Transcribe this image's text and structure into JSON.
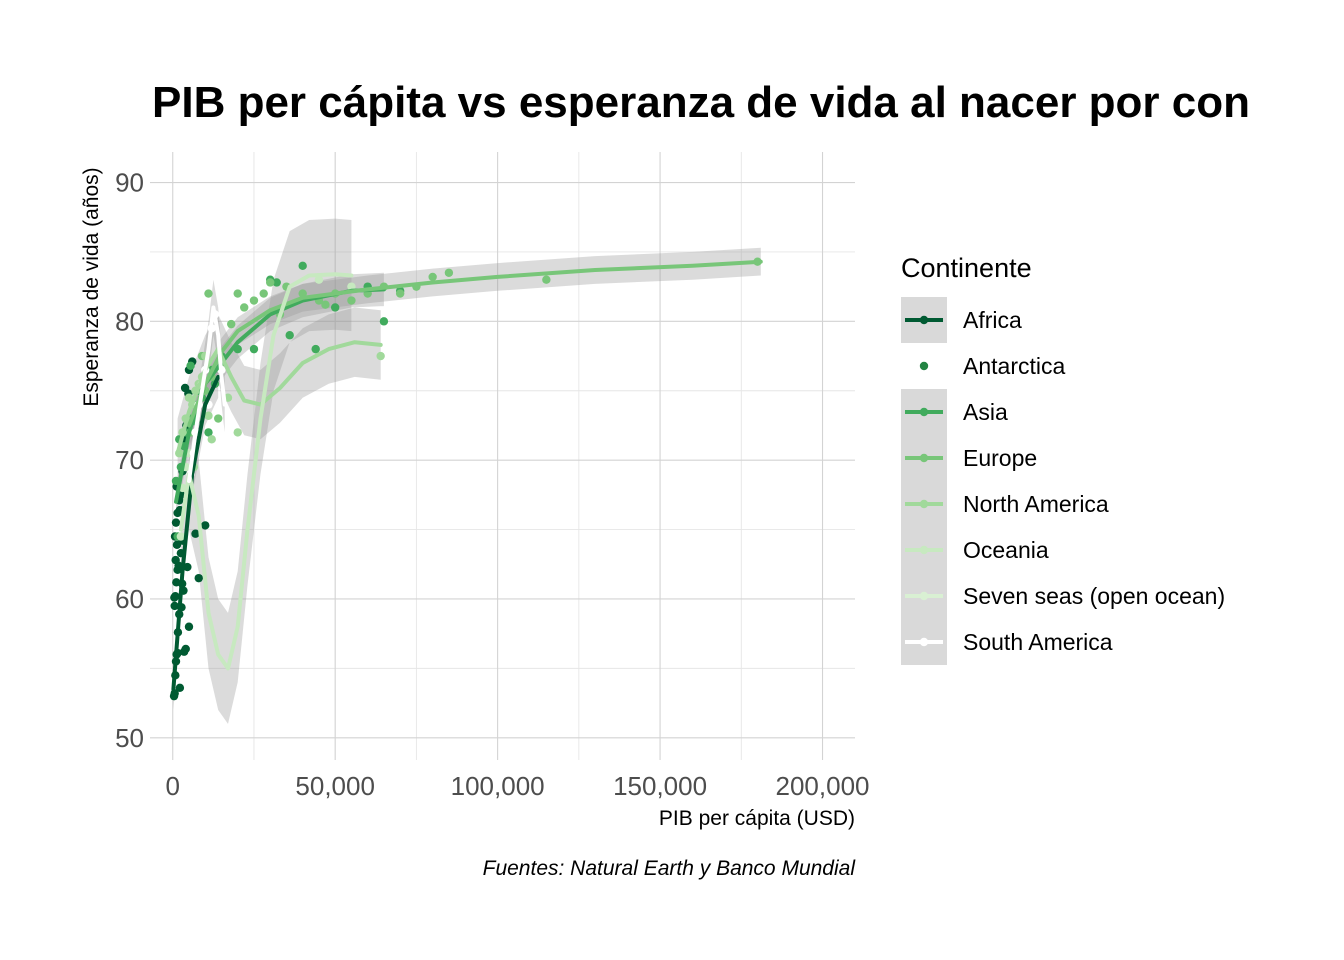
{
  "chart_data": {
    "type": "scatter",
    "title": "PIB per cápita vs esperanza de vida al nacer por con",
    "xlabel": "PIB per cápita  (USD)",
    "ylabel": "Esperanza de vida (años)",
    "caption": "Fuentes: Natural Earth y Banco Mundial",
    "xlim": [
      -7000,
      210000
    ],
    "ylim": [
      48.4,
      92.2
    ],
    "x_ticks": [
      0,
      50000,
      100000,
      150000,
      200000
    ],
    "x_tick_labels": [
      "0",
      "50,000",
      "100,000",
      "150,000",
      "200,000"
    ],
    "y_ticks": [
      50,
      60,
      70,
      80,
      90
    ],
    "y_tick_labels": [
      "50",
      "60",
      "70",
      "80",
      "90"
    ],
    "grid": true,
    "legend": {
      "title": "Continente",
      "placement": "right",
      "entries": [
        "Africa",
        "Antarctica",
        "Asia",
        "Europe",
        "North America",
        "Oceania",
        "Seven seas (open ocean)",
        "South America"
      ]
    },
    "series": [
      {
        "name": "Africa",
        "color": "#005a32",
        "points": [
          [
            400,
            53
          ],
          [
            600,
            53.2
          ],
          [
            800,
            54.5
          ],
          [
            1000,
            55.5
          ],
          [
            1200,
            56
          ],
          [
            1500,
            56.1
          ],
          [
            2200,
            53.6
          ],
          [
            3500,
            56.2
          ],
          [
            4000,
            56.4
          ],
          [
            5000,
            58
          ],
          [
            600,
            59.5
          ],
          [
            800,
            60.2
          ],
          [
            1100,
            61.2
          ],
          [
            1500,
            62.1
          ],
          [
            1800,
            62.4
          ],
          [
            2500,
            63.3
          ],
          [
            3000,
            64.2
          ],
          [
            700,
            64.5
          ],
          [
            1000,
            65.5
          ],
          [
            1500,
            66.2
          ],
          [
            2000,
            67.1
          ],
          [
            2500,
            67.5
          ],
          [
            3000,
            69.2
          ],
          [
            3500,
            71.5
          ],
          [
            4200,
            72.5
          ],
          [
            4800,
            74.8
          ],
          [
            3800,
            75.2
          ],
          [
            5000,
            76.5
          ],
          [
            6000,
            77.1
          ],
          [
            500,
            60.1
          ],
          [
            900,
            62.8
          ],
          [
            1300,
            63.9
          ],
          [
            2000,
            58.9
          ],
          [
            2700,
            59.4
          ],
          [
            1600,
            57.6
          ],
          [
            3300,
            60.6
          ],
          [
            4500,
            62.3
          ],
          [
            8000,
            61.5
          ],
          [
            7000,
            64.7
          ],
          [
            10000,
            65.3
          ],
          [
            1200,
            68.1
          ],
          [
            2200,
            66.4
          ],
          [
            2900,
            61.1
          ]
        ],
        "fit": [
          [
            200,
            53.5
          ],
          [
            3000,
            62
          ],
          [
            6000,
            69
          ],
          [
            10000,
            74
          ],
          [
            14000,
            76
          ]
        ],
        "band": 1.5
      },
      {
        "name": "Antarctica",
        "color": "#238443",
        "points": []
      },
      {
        "name": "Asia",
        "color": "#41ab5d",
        "points": [
          [
            1500,
            64.5
          ],
          [
            2500,
            69.5
          ],
          [
            3500,
            71
          ],
          [
            4000,
            72
          ],
          [
            5000,
            73
          ],
          [
            6500,
            74
          ],
          [
            8000,
            75
          ],
          [
            9000,
            74.5
          ],
          [
            12000,
            76.5
          ],
          [
            15000,
            77.5
          ],
          [
            20000,
            78
          ],
          [
            30000,
            83
          ],
          [
            40000,
            84
          ],
          [
            60000,
            82.5
          ],
          [
            65000,
            80
          ],
          [
            70000,
            82.2
          ],
          [
            50000,
            81
          ],
          [
            5500,
            76.8
          ],
          [
            7000,
            72.8
          ],
          [
            11000,
            72
          ],
          [
            13000,
            75.5
          ],
          [
            25000,
            78
          ],
          [
            32000,
            82.8
          ],
          [
            36000,
            79
          ],
          [
            44000,
            78
          ],
          [
            1000,
            68.5
          ],
          [
            2000,
            71.5
          ]
        ],
        "fit": [
          [
            1000,
            67
          ],
          [
            5000,
            72
          ],
          [
            10000,
            75.5
          ],
          [
            20000,
            78.5
          ],
          [
            30000,
            80.5
          ],
          [
            40000,
            81.5
          ],
          [
            55000,
            82.2
          ],
          [
            65000,
            82.3
          ]
        ],
        "band": 1.2
      },
      {
        "name": "Europe",
        "color": "#78c679",
        "points": [
          [
            5500,
            72
          ],
          [
            8000,
            74
          ],
          [
            10000,
            75
          ],
          [
            12000,
            76
          ],
          [
            15000,
            77
          ],
          [
            18000,
            79.8
          ],
          [
            20000,
            82
          ],
          [
            25000,
            81.5
          ],
          [
            28000,
            82
          ],
          [
            30000,
            82.8
          ],
          [
            35000,
            82.5
          ],
          [
            40000,
            82
          ],
          [
            45000,
            81.5
          ],
          [
            50000,
            82
          ],
          [
            55000,
            81.5
          ],
          [
            60000,
            82
          ],
          [
            65000,
            82.5
          ],
          [
            70000,
            82
          ],
          [
            75000,
            82.5
          ],
          [
            80000,
            83.2
          ],
          [
            85000,
            83.5
          ],
          [
            115000,
            83
          ],
          [
            180000,
            84.3
          ],
          [
            11000,
            82
          ],
          [
            9000,
            77.5
          ],
          [
            14000,
            73
          ],
          [
            22000,
            81
          ],
          [
            33000,
            80.5
          ],
          [
            47000,
            81.2
          ]
        ],
        "fit": [
          [
            5000,
            72.5
          ],
          [
            10000,
            75.5
          ],
          [
            15000,
            77.8
          ],
          [
            20000,
            79.3
          ],
          [
            30000,
            80.8
          ],
          [
            40000,
            81.7
          ],
          [
            60000,
            82.3
          ],
          [
            80000,
            82.8
          ],
          [
            100000,
            83.2
          ],
          [
            130000,
            83.7
          ],
          [
            160000,
            84
          ],
          [
            181000,
            84.3
          ]
        ],
        "band": 1.0
      },
      {
        "name": "North America",
        "color": "#a1d99b",
        "points": [
          [
            2000,
            70.5
          ],
          [
            3000,
            72
          ],
          [
            4000,
            73
          ],
          [
            5000,
            74.5
          ],
          [
            6000,
            74
          ],
          [
            7000,
            75
          ],
          [
            8000,
            75.5
          ],
          [
            9000,
            76
          ],
          [
            10000,
            77.5
          ],
          [
            12000,
            71.5
          ],
          [
            17000,
            74.5
          ],
          [
            20000,
            72
          ],
          [
            64000,
            77.5
          ],
          [
            6500,
            69.5
          ],
          [
            11000,
            73.2
          ]
        ],
        "fit": [
          [
            1500,
            70.5
          ],
          [
            5000,
            73.5
          ],
          [
            10000,
            76.5
          ],
          [
            14000,
            78
          ],
          [
            18000,
            76
          ],
          [
            22000,
            74.3
          ],
          [
            27000,
            74
          ],
          [
            33000,
            75.2
          ],
          [
            40000,
            77
          ],
          [
            48000,
            78
          ],
          [
            56000,
            78.5
          ],
          [
            64000,
            78.3
          ]
        ],
        "band": 2.5
      },
      {
        "name": "Oceania",
        "color": "#c7e9c0",
        "points": [
          [
            2500,
            64.5
          ],
          [
            3000,
            68
          ],
          [
            4000,
            69.5
          ],
          [
            5000,
            70.5
          ],
          [
            45000,
            83
          ],
          [
            55000,
            82.5
          ]
        ],
        "fit": [
          [
            2500,
            65
          ],
          [
            5000,
            69
          ],
          [
            8000,
            66
          ],
          [
            11000,
            59
          ],
          [
            14000,
            56
          ],
          [
            17000,
            55
          ],
          [
            20000,
            58
          ],
          [
            23000,
            65
          ],
          [
            27000,
            73
          ],
          [
            31000,
            79
          ],
          [
            36000,
            82.5
          ],
          [
            42000,
            83.3
          ],
          [
            50000,
            83.4
          ],
          [
            55000,
            83.3
          ]
        ],
        "band": 4.0
      },
      {
        "name": "Seven seas (open ocean)",
        "color": "#d9f0d3",
        "points": []
      },
      {
        "name": "South America",
        "color": "#ffffff",
        "points": [
          [
            5500,
            69
          ],
          [
            7000,
            72
          ],
          [
            8000,
            74
          ],
          [
            9000,
            75.5
          ],
          [
            10000,
            76.5
          ],
          [
            12000,
            79.5
          ],
          [
            13000,
            80.5
          ],
          [
            15000,
            76.5
          ],
          [
            11000,
            74
          ],
          [
            6500,
            70.5
          ]
        ],
        "fit": [
          [
            5000,
            68.5
          ],
          [
            7000,
            72
          ],
          [
            9000,
            75
          ],
          [
            11000,
            78
          ],
          [
            12500,
            81
          ],
          [
            14000,
            79
          ],
          [
            15000,
            76
          ],
          [
            16000,
            74
          ]
        ],
        "band": 2.0
      }
    ]
  }
}
